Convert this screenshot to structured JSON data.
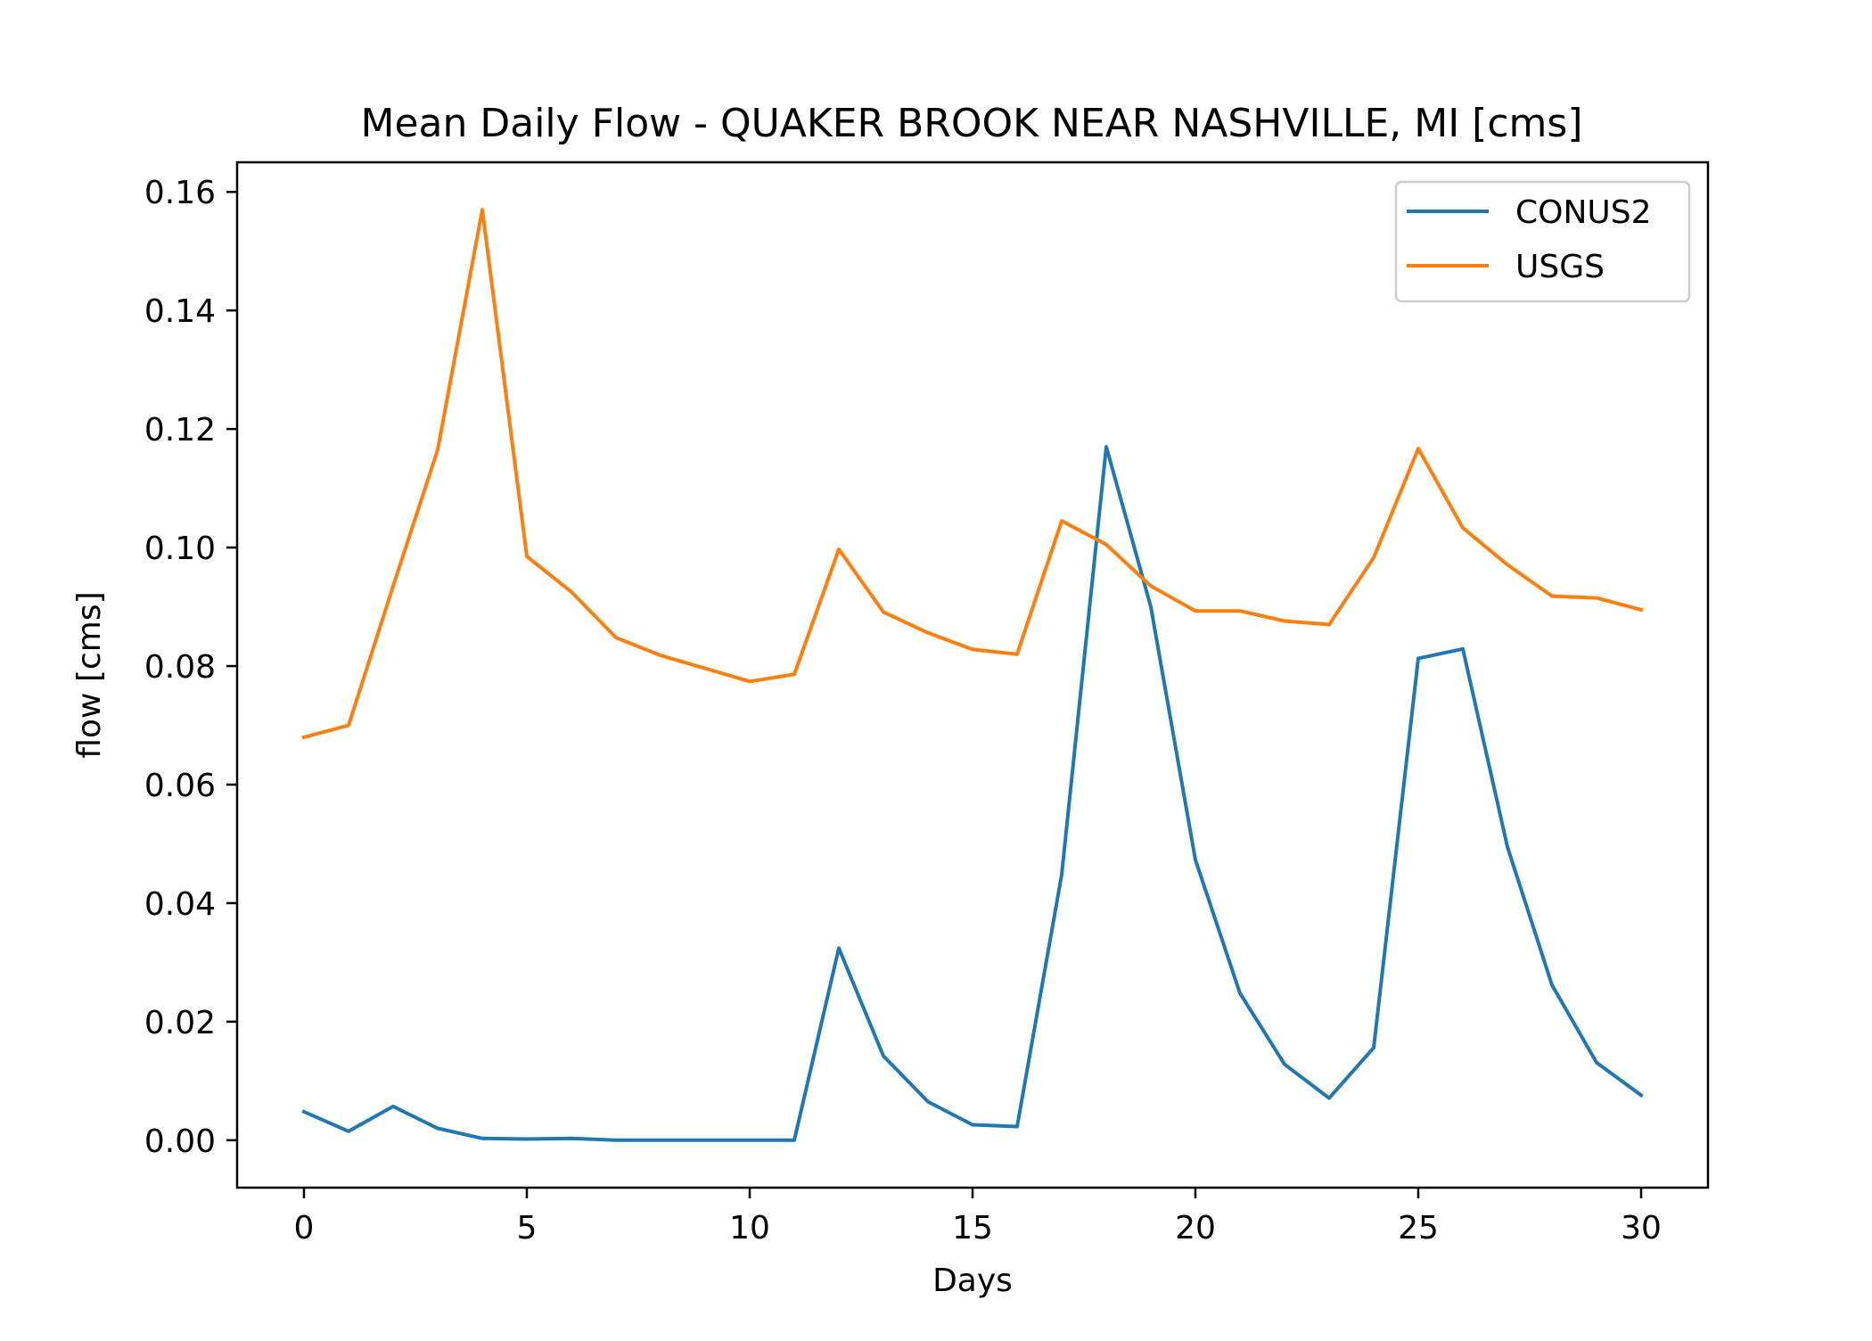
{
  "chart_data": {
    "type": "line",
    "title": "Mean Daily Flow - QUAKER BROOK NEAR NASHVILLE, MI [cms]",
    "xlabel": "Days",
    "ylabel": "flow [cms]",
    "xlim": [
      -1.5,
      31.5
    ],
    "ylim": [
      -0.008,
      0.165
    ],
    "xticks": [
      0,
      5,
      10,
      15,
      20,
      25,
      30
    ],
    "xtick_labels": [
      "0",
      "5",
      "10",
      "15",
      "20",
      "25",
      "30"
    ],
    "yticks": [
      0.0,
      0.02,
      0.04,
      0.06,
      0.08,
      0.1,
      0.12,
      0.14,
      0.16
    ],
    "ytick_labels": [
      "0.00",
      "0.02",
      "0.04",
      "0.06",
      "0.08",
      "0.10",
      "0.12",
      "0.14",
      "0.16"
    ],
    "grid": false,
    "legend_position": "top-right",
    "x": [
      0,
      1,
      2,
      3,
      4,
      5,
      6,
      7,
      8,
      9,
      10,
      11,
      12,
      13,
      14,
      15,
      16,
      17,
      18,
      19,
      20,
      21,
      22,
      23,
      24,
      25,
      26,
      27,
      28,
      29,
      30
    ],
    "series": [
      {
        "name": "CONUS2",
        "color": "#1f77b4",
        "values": [
          0.0048,
          0.0015,
          0.0057,
          0.002,
          0.0003,
          0.0002,
          0.0003,
          0.0,
          0.0,
          0.0,
          0.0,
          0.0,
          0.0324,
          0.0142,
          0.0065,
          0.0026,
          0.0023,
          0.0448,
          0.117,
          0.09,
          0.0473,
          0.0248,
          0.0128,
          0.0071,
          0.0156,
          0.0813,
          0.0829,
          0.0495,
          0.0262,
          0.0131,
          0.0076
        ]
      },
      {
        "name": "USGS",
        "color": "#ff7f0e",
        "values": [
          0.068,
          0.07,
          0.0935,
          0.1165,
          0.157,
          0.0985,
          0.0925,
          0.0848,
          0.0818,
          0.0796,
          0.0774,
          0.0786,
          0.0997,
          0.0891,
          0.0856,
          0.0828,
          0.082,
          0.1045,
          0.1005,
          0.0935,
          0.0893,
          0.0893,
          0.0876,
          0.087,
          0.0983,
          0.1167,
          0.1033,
          0.0971,
          0.0918,
          0.0915,
          0.0895
        ]
      }
    ]
  }
}
